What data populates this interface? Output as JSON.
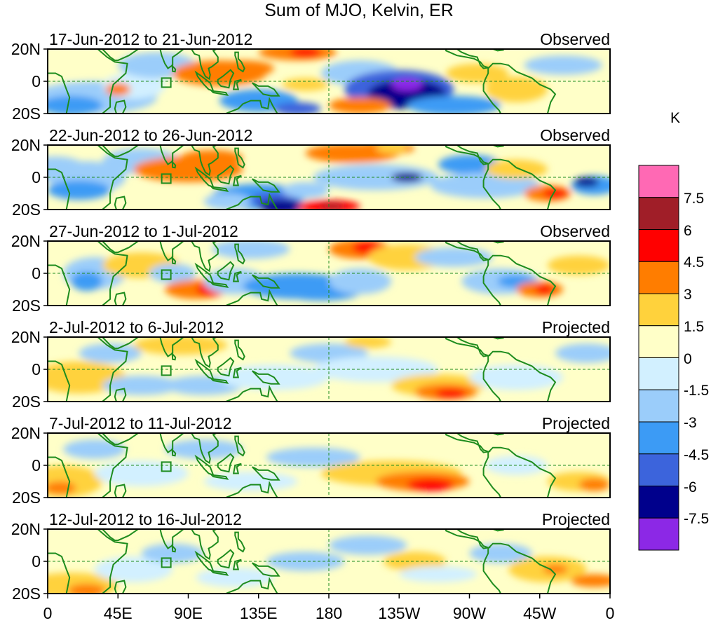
{
  "title": "Sum of MJO, Kelvin, ER",
  "colorbar": {
    "unit": "K",
    "ticks": [
      "7.5",
      "6",
      "4.5",
      "3",
      "1.5",
      "0",
      "-1.5",
      "-3",
      "-4.5",
      "-6",
      "-7.5"
    ],
    "colors": [
      "#ff69b4",
      "#a01e28",
      "#ff0000",
      "#ff7d00",
      "#ffd23c",
      "#ffffc8",
      "#d2f0ff",
      "#9bcdfa",
      "#3c9bf5",
      "#3c64dc",
      "#00008c",
      "#8c28e6"
    ]
  },
  "x_axis": {
    "ticks": [
      "0",
      "45E",
      "90E",
      "135E",
      "180",
      "135W",
      "90W",
      "45W",
      "0"
    ]
  },
  "y_axis": {
    "ticks": [
      "20N",
      "0",
      "20S"
    ]
  },
  "panels": [
    {
      "date_range": "17-Jun-2012 to 21-Jun-2012",
      "status": "Observed"
    },
    {
      "date_range": "22-Jun-2012 to 26-Jun-2012",
      "status": "Observed"
    },
    {
      "date_range": "27-Jun-2012 to 1-Jul-2012",
      "status": "Observed"
    },
    {
      "date_range": "2-Jul-2012 to 6-Jul-2012",
      "status": "Projected"
    },
    {
      "date_range": "7-Jul-2012 to 11-Jul-2012",
      "status": "Projected"
    },
    {
      "date_range": "12-Jul-2012 to 16-Jul-2012",
      "status": "Projected"
    }
  ],
  "map_colors": {
    "coast": "#1e8c1e",
    "frame": "#000000",
    "dash": "#1e8c1e"
  }
}
